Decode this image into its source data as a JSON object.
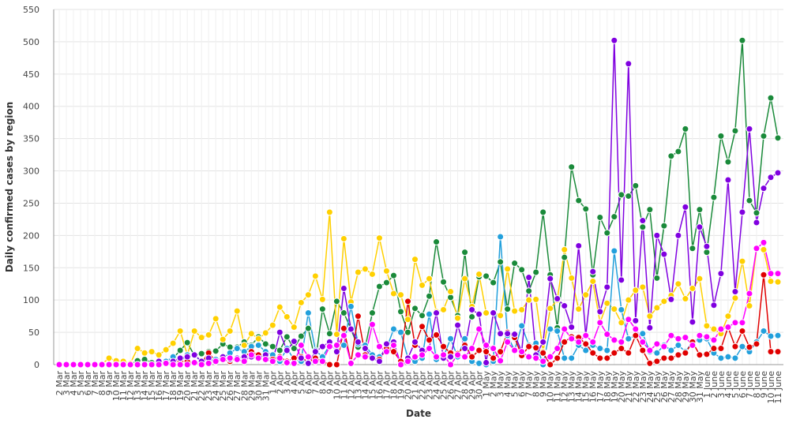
{
  "chart_data": {
    "type": "line",
    "y_label": "Daily confirmed cases by region",
    "x_label": "Date",
    "categories": [
      "2 Mar",
      "3 Mar",
      "4 Mar",
      "5 Mar",
      "6 Mar",
      "7 Mar",
      "8 Mar",
      "9 Mar",
      "10 Mar",
      "11 Mar",
      "12 Mar",
      "13 Mar",
      "14 Mar",
      "15 Mar",
      "16 Mar",
      "17 Mar",
      "18 Mar",
      "19 Mar",
      "20 Mar",
      "21 Mar",
      "22 Mar",
      "23 Mar",
      "24 Mar",
      "25 Mar",
      "26 Mar",
      "27 Mar",
      "28 Mar",
      "29 Mar",
      "30 Mar",
      "31 Mar",
      "1 Apr",
      "2 Apr",
      "3 Apr",
      "4 Apr",
      "5 Apr",
      "6 Apr",
      "7 Apr",
      "8 Apr",
      "9 Apr",
      "10 Apr",
      "11 Apr",
      "12 Apr",
      "13 Apr",
      "14 Apr",
      "15 Apr",
      "16 Apr",
      "17 Apr",
      "18 Apr",
      "19 Apr",
      "20 Apr",
      "21 Apr",
      "22 Apr",
      "23 Apr",
      "24 Apr",
      "25 Apr",
      "26 Apr",
      "27 Apr",
      "28 Apr",
      "29 Apr",
      "30 Apr",
      "1 May",
      "2 May",
      "3 May",
      "4 May",
      "5 May",
      "6 May",
      "7 May",
      "8 May",
      "9 May",
      "10 May",
      "11 May",
      "12 May",
      "13 May",
      "14 May",
      "15 May",
      "16 May",
      "17 May",
      "18 May",
      "19 May",
      "20 May",
      "21 May",
      "22 May",
      "23 May",
      "24 May",
      "25 May",
      "26 May",
      "27 May",
      "28 May",
      "29 May",
      "30 May",
      "31 May",
      "1 June",
      "2 June",
      "3 June",
      "4 June",
      "5 June",
      "6 June",
      "7 June",
      "8 June",
      "9 June",
      "10 June",
      "11 June"
    ],
    "series": [
      {
        "color": "#1a8a3a",
        "values": [
          0,
          0,
          0,
          0,
          0,
          0,
          0,
          0,
          1,
          1,
          1,
          6,
          8,
          3,
          3,
          5,
          10,
          22,
          34,
          14,
          17,
          20,
          21,
          32,
          27,
          27,
          35,
          30,
          43,
          32,
          28,
          22,
          43,
          25,
          44,
          56,
          5,
          86,
          48,
          98,
          80,
          55,
          27,
          26,
          80,
          121,
          127,
          138,
          82,
          50,
          87,
          76,
          106,
          190,
          128,
          104,
          76,
          174,
          74,
          136,
          137,
          127,
          159,
          86,
          157,
          147,
          114,
          143,
          236,
          139,
          57,
          166,
          306,
          254,
          241,
          139,
          228,
          204,
          229,
          263,
          261,
          277,
          213,
          240,
          134,
          215,
          323,
          330,
          365,
          180,
          240,
          174,
          259,
          354,
          314,
          362,
          502,
          254,
          235,
          354,
          413,
          351
        ]
      },
      {
        "color": "#ffd000",
        "values": [
          0,
          0,
          0,
          0,
          0,
          0,
          1,
          10,
          6,
          5,
          2,
          25,
          18,
          20,
          15,
          23,
          33,
          52,
          15,
          52,
          42,
          46,
          71,
          39,
          52,
          83,
          30,
          48,
          40,
          49,
          61,
          89,
          74,
          58,
          96,
          108,
          137,
          101,
          236,
          47,
          195,
          97,
          143,
          148,
          140,
          196,
          145,
          110,
          108,
          70,
          163,
          123,
          133,
          82,
          85,
          113,
          72,
          133,
          90,
          140,
          80,
          81,
          76,
          148,
          83,
          85,
          100,
          101,
          20,
          87,
          100,
          178,
          134,
          86,
          108,
          129,
          65,
          95,
          86,
          65,
          100,
          115,
          120,
          75,
          88,
          98,
          107,
          125,
          102,
          118,
          133,
          60,
          55,
          48,
          75,
          103,
          160,
          91,
          180,
          178,
          129,
          128
        ]
      },
      {
        "color": "#22a0dc",
        "values": [
          0,
          0,
          0,
          0,
          0,
          0,
          0,
          0,
          0,
          0,
          0,
          0,
          0,
          0,
          2,
          5,
          12,
          4,
          15,
          14,
          5,
          3,
          8,
          10,
          18,
          25,
          20,
          28,
          30,
          20,
          15,
          5,
          25,
          8,
          5,
          80,
          22,
          12,
          30,
          28,
          30,
          90,
          32,
          30,
          15,
          12,
          25,
          55,
          50,
          10,
          5,
          10,
          78,
          8,
          12,
          40,
          12,
          40,
          5,
          2,
          0,
          5,
          198,
          45,
          22,
          60,
          30,
          33,
          0,
          55,
          52,
          10,
          10,
          30,
          22,
          30,
          25,
          22,
          176,
          85,
          40,
          45,
          48,
          20,
          18,
          30,
          22,
          30,
          20,
          35,
          38,
          40,
          18,
          10,
          12,
          10,
          28,
          20,
          35,
          52,
          44,
          45
        ]
      },
      {
        "color": "#e00000",
        "values": [
          0,
          0,
          0,
          0,
          0,
          0,
          0,
          0,
          0,
          0,
          0,
          0,
          0,
          0,
          1,
          2,
          3,
          5,
          5,
          2,
          3,
          18,
          5,
          8,
          5,
          10,
          12,
          20,
          15,
          10,
          8,
          12,
          5,
          10,
          12,
          3,
          10,
          5,
          0,
          0,
          56,
          3,
          75,
          15,
          10,
          8,
          25,
          20,
          5,
          98,
          30,
          59,
          38,
          46,
          28,
          18,
          17,
          30,
          12,
          22,
          20,
          10,
          20,
          50,
          42,
          14,
          28,
          26,
          18,
          0,
          10,
          35,
          43,
          42,
          32,
          18,
          10,
          10,
          18,
          25,
          18,
          45,
          22,
          2,
          5,
          10,
          10,
          15,
          18,
          35,
          15,
          16,
          25,
          25,
          58,
          28,
          52,
          27,
          32,
          139,
          20,
          20
        ]
      },
      {
        "color": "#8000e0",
        "values": [
          0,
          0,
          0,
          0,
          0,
          0,
          0,
          0,
          0,
          0,
          0,
          0,
          0,
          0,
          5,
          2,
          5,
          10,
          12,
          15,
          5,
          10,
          5,
          12,
          8,
          10,
          12,
          12,
          10,
          15,
          5,
          50,
          22,
          36,
          10,
          2,
          20,
          28,
          35,
          20,
          118,
          55,
          35,
          25,
          10,
          5,
          32,
          35,
          0,
          10,
          35,
          22,
          25,
          80,
          10,
          12,
          61,
          25,
          85,
          78,
          3,
          80,
          48,
          48,
          47,
          20,
          135,
          15,
          35,
          133,
          102,
          91,
          58,
          184,
          45,
          144,
          82,
          120,
          502,
          131,
          466,
          68,
          223,
          57,
          200,
          171,
          101,
          200,
          244,
          66,
          213,
          183,
          92,
          141,
          286,
          113,
          236,
          365,
          220,
          273,
          290,
          297
        ]
      },
      {
        "color": "#ff00ff",
        "values": [
          0,
          0,
          0,
          0,
          0,
          0,
          0,
          0,
          0,
          0,
          0,
          0,
          0,
          0,
          0,
          2,
          0,
          0,
          0,
          3,
          0,
          2,
          5,
          8,
          10,
          8,
          5,
          15,
          10,
          8,
          5,
          10,
          3,
          2,
          30,
          12,
          5,
          5,
          28,
          30,
          45,
          2,
          15,
          12,
          62,
          28,
          20,
          30,
          0,
          5,
          12,
          15,
          25,
          12,
          15,
          0,
          15,
          12,
          25,
          55,
          30,
          25,
          6,
          35,
          22,
          20,
          12,
          10,
          5,
          12,
          25,
          55,
          40,
          35,
          45,
          35,
          65,
          47,
          38,
          35,
          70,
          55,
          35,
          22,
          32,
          28,
          45,
          40,
          42,
          30,
          45,
          43,
          38,
          55,
          58,
          65,
          65,
          110,
          180,
          189,
          141,
          141
        ]
      }
    ],
    "ylim": [
      0,
      550
    ],
    "yticks": [
      0,
      50,
      100,
      150,
      200,
      250,
      300,
      350,
      400,
      450,
      500,
      550
    ],
    "grid": true
  }
}
